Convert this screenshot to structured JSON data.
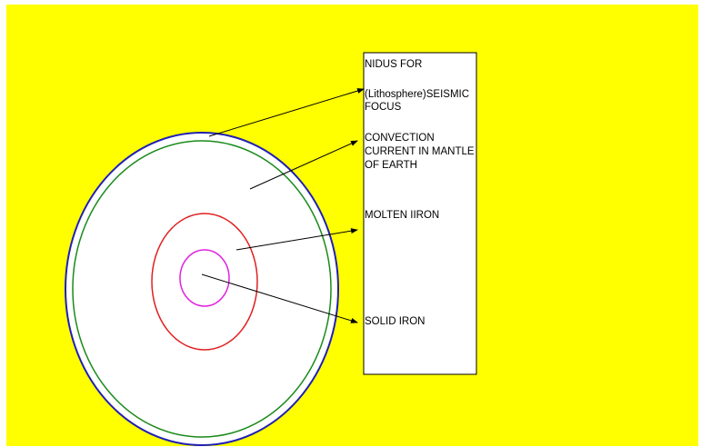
{
  "labels": [
    {
      "lines": [
        "NIDUS FOR"
      ]
    },
    {
      "lines": [
        "(Lithosphere)SEISMIC",
        "FOCUS"
      ]
    },
    {
      "lines": [
        "CONVECTION",
        "CURRENT IN MANTLE",
        "OF EARTH"
      ]
    },
    {
      "lines": [
        "MOLTEN IIRON"
      ]
    },
    {
      "lines": [
        "SOLID IRON"
      ]
    }
  ]
}
